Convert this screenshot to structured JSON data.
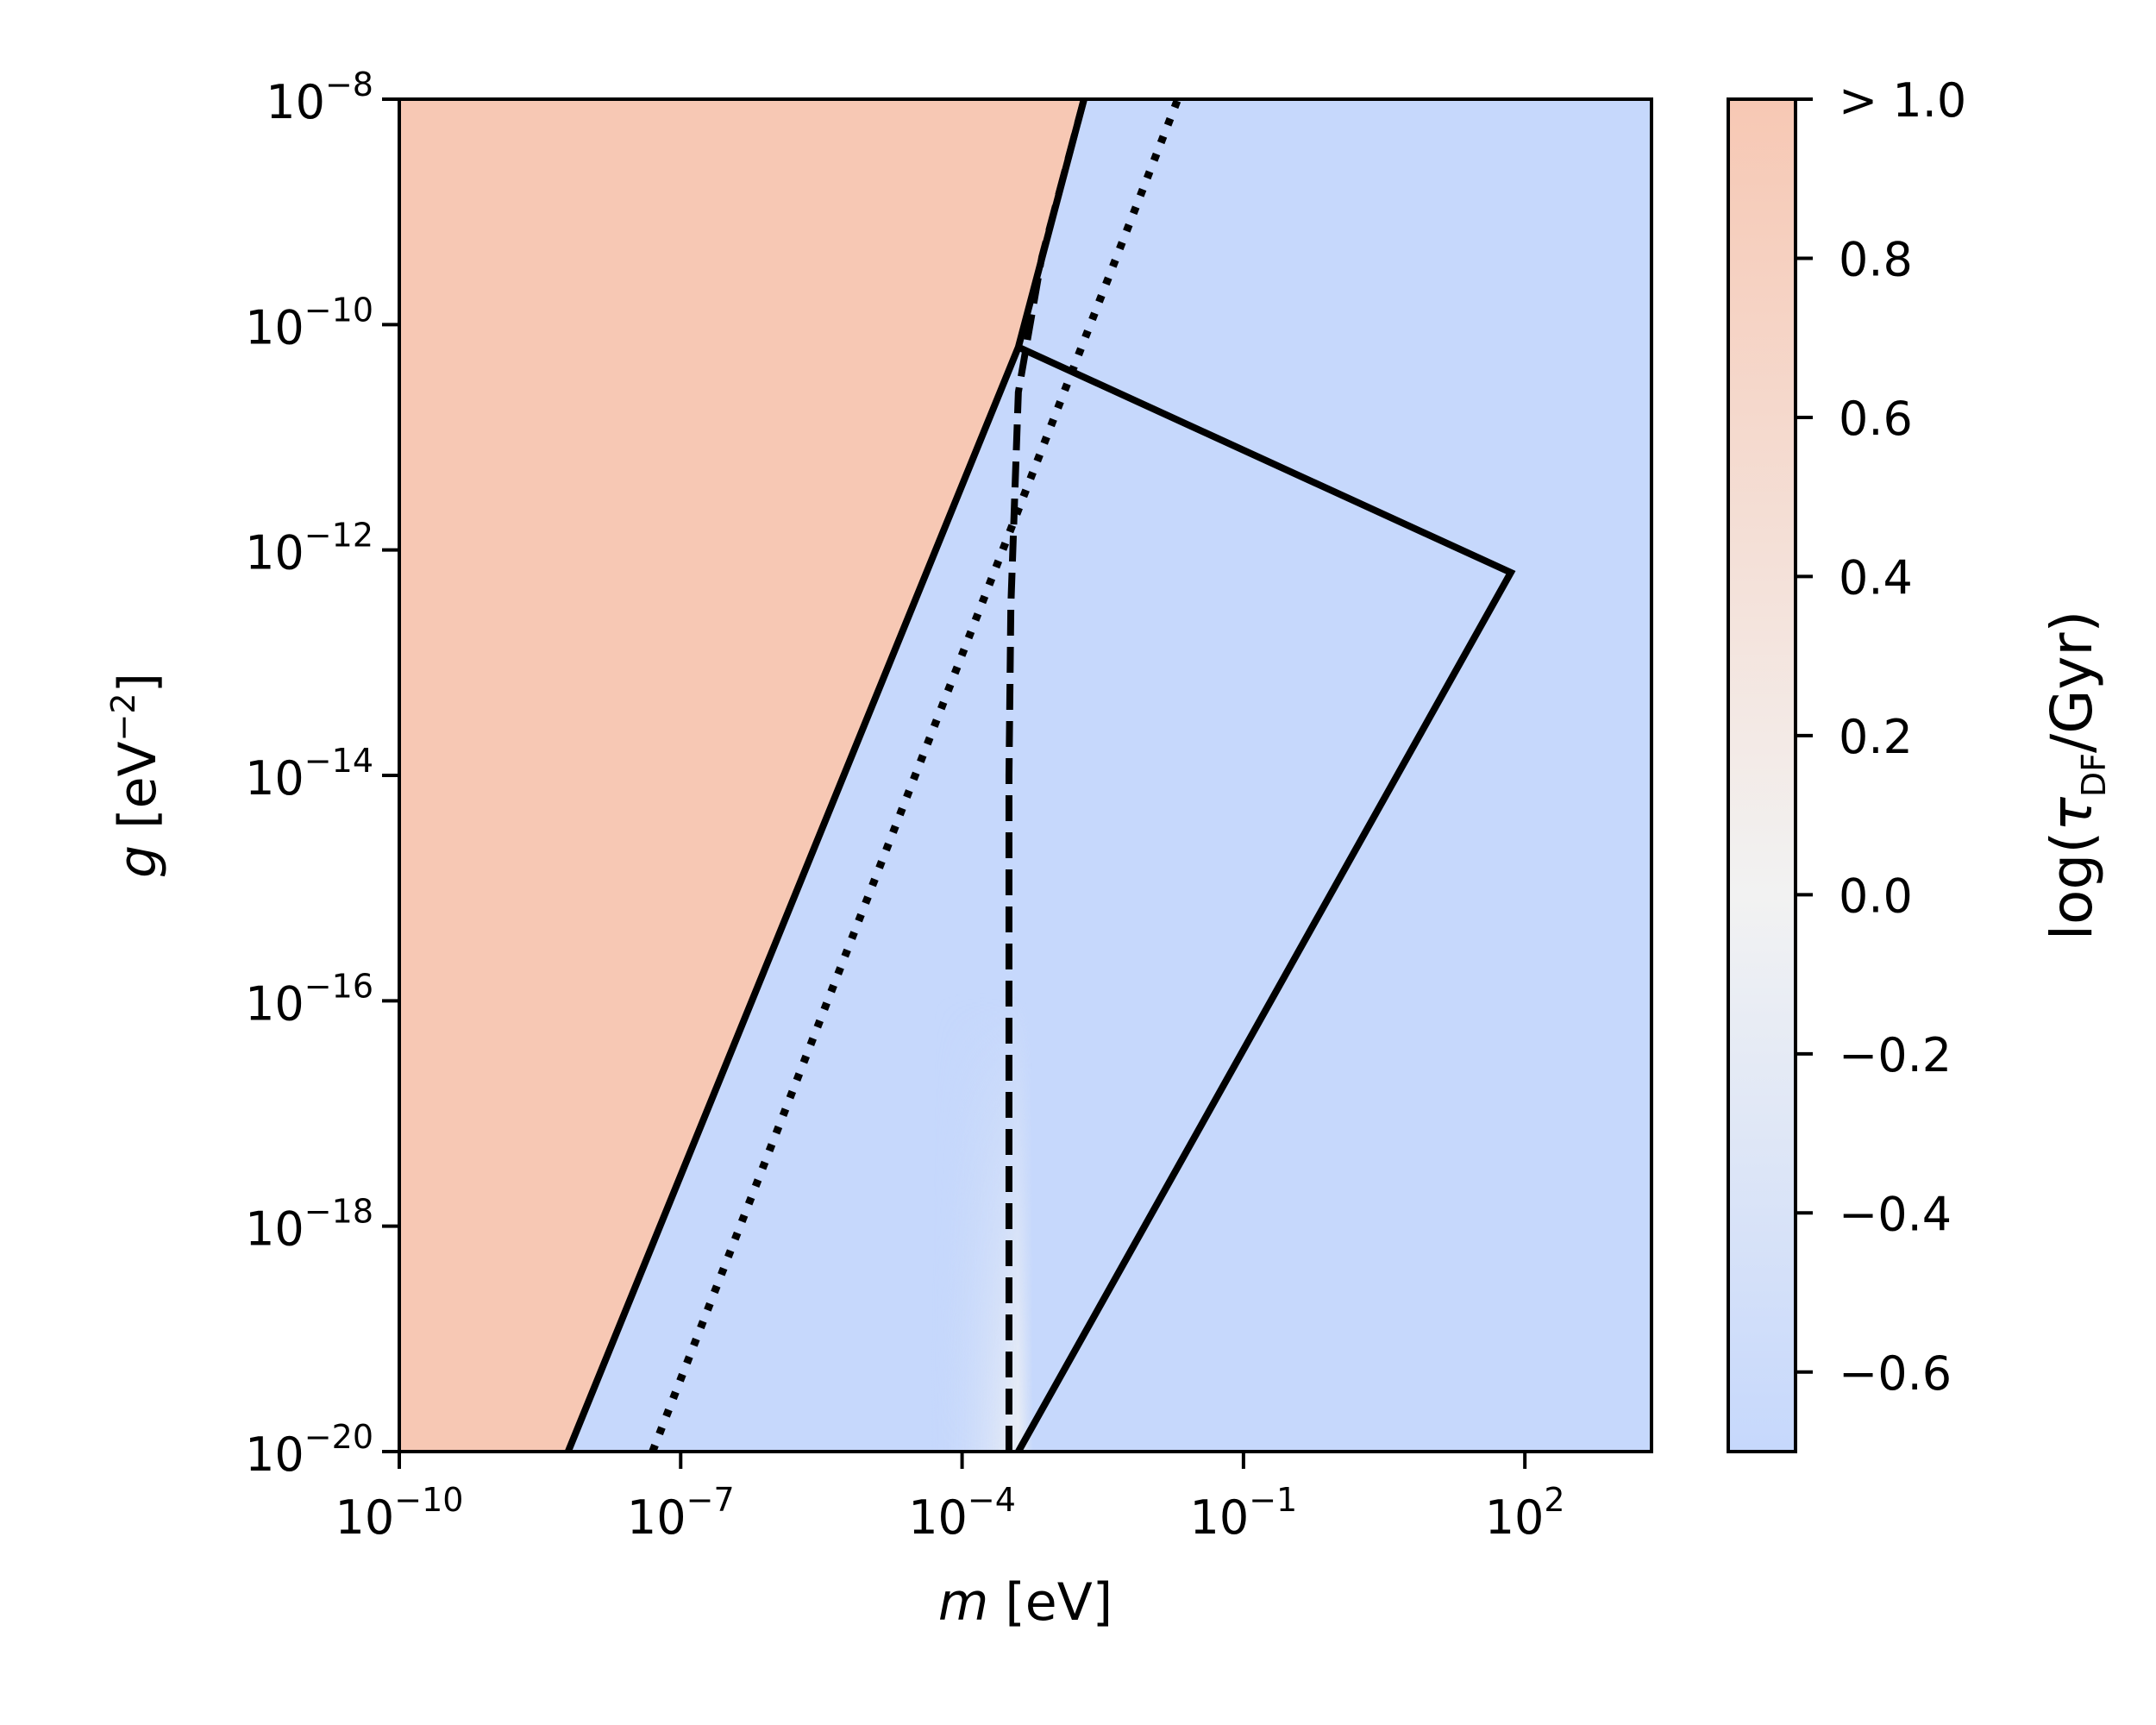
{
  "chart_data": {
    "type": "heatmap",
    "x_axis": {
      "label_var": "m",
      "label_unit": " [eV]",
      "scale": "log",
      "range_exponent": [
        -10,
        3.35
      ],
      "ticks": [
        {
          "base": "10",
          "exp": "−10",
          "value": 1e-10
        },
        {
          "base": "10",
          "exp": "−7",
          "value": 1e-07
        },
        {
          "base": "10",
          "exp": "−4",
          "value": 0.0001
        },
        {
          "base": "10",
          "exp": "−1",
          "value": 0.1
        },
        {
          "base": "10",
          "exp": "2",
          "value": 100
        }
      ]
    },
    "y_axis": {
      "label_var": "g",
      "label_unit_pre": " [eV",
      "label_unit_exp": "−2",
      "label_unit_post": "]",
      "scale": "log",
      "range_exponent": [
        -20,
        -8
      ],
      "ticks": [
        {
          "base": "10",
          "exp": "−8",
          "value": 1e-08
        },
        {
          "base": "10",
          "exp": "−10",
          "value": 1e-10
        },
        {
          "base": "10",
          "exp": "−12",
          "value": 1e-12
        },
        {
          "base": "10",
          "exp": "−14",
          "value": 1e-14
        },
        {
          "base": "10",
          "exp": "−16",
          "value": 1e-16
        },
        {
          "base": "10",
          "exp": "−18",
          "value": 1e-18
        },
        {
          "base": "10",
          "exp": "−20",
          "value": 1e-20
        }
      ]
    },
    "colorbar": {
      "label_pre": "log(",
      "label_sym": "τ",
      "label_sub": "DF",
      "label_post": "/Gyr)",
      "range": [
        -0.7,
        1.0
      ],
      "colormap": "coolwarm",
      "color_low": "#c6d8fc",
      "color_mid": "#f2f2f2",
      "color_high": "#f7c8b4",
      "ticks": [
        {
          "label": "> 1.0",
          "value": 1.0
        },
        {
          "label": "0.8",
          "value": 0.8
        },
        {
          "label": "0.6",
          "value": 0.6
        },
        {
          "label": "0.4",
          "value": 0.4
        },
        {
          "label": "0.2",
          "value": 0.2
        },
        {
          "label": "0.0",
          "value": 0.0
        },
        {
          "label": "−0.2",
          "value": -0.2
        },
        {
          "label": "−0.4",
          "value": -0.4
        },
        {
          "label": "−0.6",
          "value": -0.6
        }
      ]
    },
    "regions": [
      {
        "name": "",
        "value": 1.0,
        "description_color": "#f7c8b4",
        "boundary_log": [
          [
            -10,
            -20
          ],
          [
            -8.2,
            -20
          ],
          [
            -3.4,
            -10.2
          ],
          [
            -2.7,
            -8
          ],
          [
            -10,
            -8
          ]
        ]
      },
      {
        "name": "",
        "value": -0.65,
        "description_color": "#c6d8fc"
      }
    ],
    "lines": [
      {
        "style": "solid",
        "points_log": [
          [
            -8.2,
            -20
          ],
          [
            -3.4,
            -10.2
          ],
          [
            -2.7,
            -8
          ]
        ]
      },
      {
        "style": "solid",
        "points_log": [
          [
            -3.4,
            -10.2
          ],
          [
            1.85,
            -12.2
          ],
          [
            -3.4,
            -20
          ]
        ]
      },
      {
        "style": "dashed",
        "points_log": [
          [
            -3.5,
            -20
          ],
          [
            -3.5,
            -14
          ],
          [
            -3.48,
            -12.5
          ],
          [
            -3.4,
            -10.6
          ],
          [
            -3.15,
            -9.4
          ],
          [
            -2.7,
            -8
          ]
        ]
      },
      {
        "style": "dotted",
        "points_log": [
          [
            -7.3,
            -20
          ],
          [
            -1.7,
            -8
          ]
        ]
      }
    ]
  }
}
